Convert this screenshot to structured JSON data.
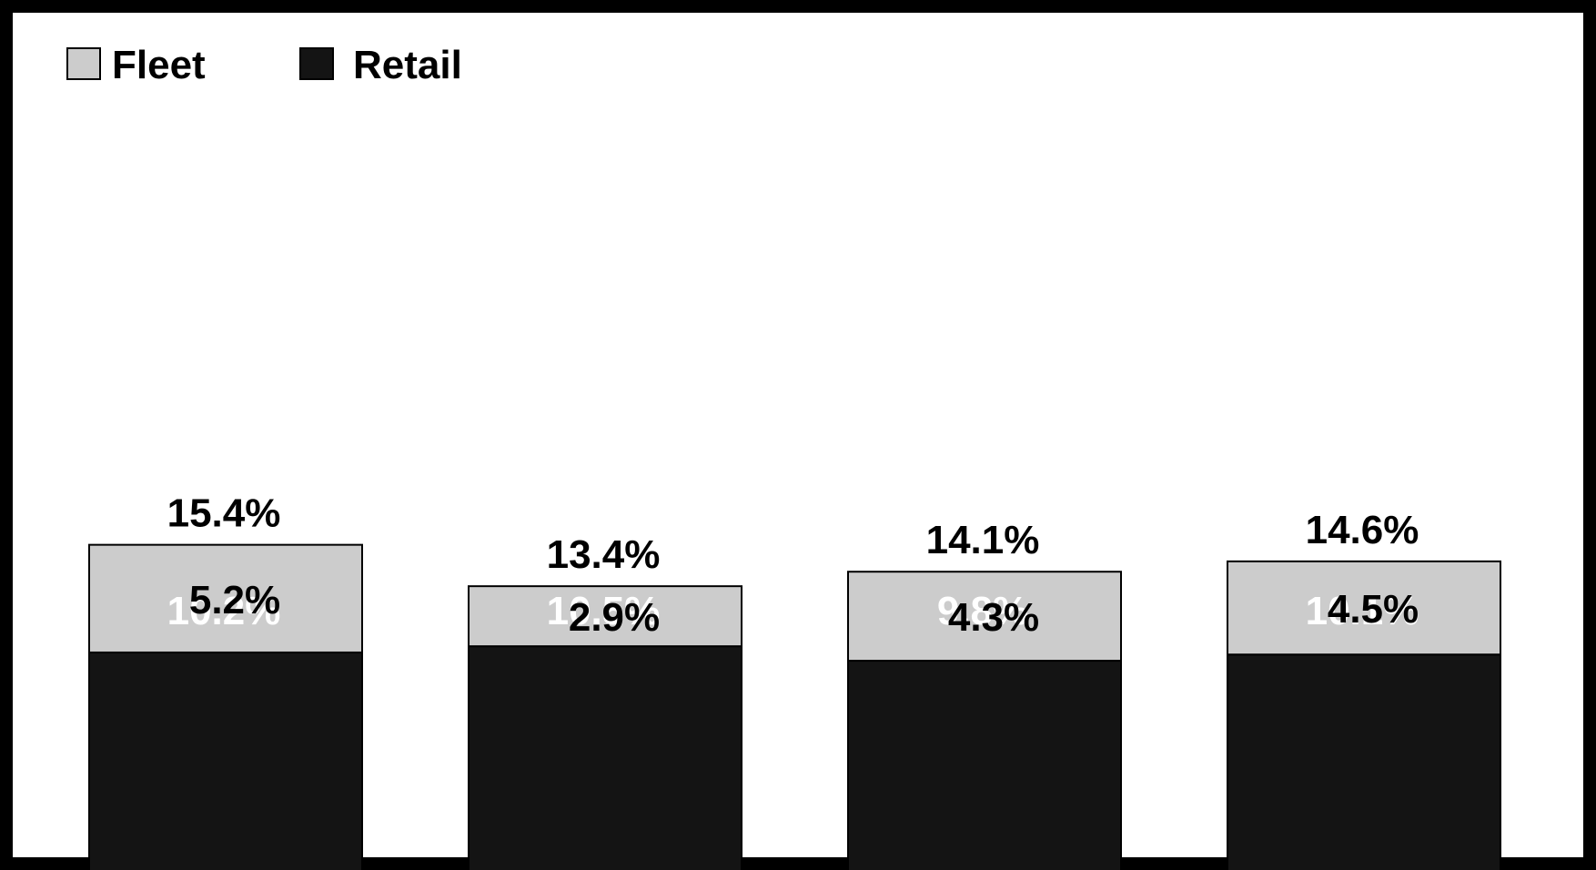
{
  "chart_data": {
    "type": "bar",
    "stacked": true,
    "categories": [
      "",
      "",
      "",
      ""
    ],
    "series": [
      {
        "name": "Retail",
        "values": [
          10.2,
          10.5,
          9.8,
          10.1
        ],
        "labels": [
          "10.2%",
          "10.5%",
          "9.8%",
          "10.1%"
        ],
        "color": "#141414"
      },
      {
        "name": "Fleet",
        "values": [
          5.2,
          2.9,
          4.3,
          4.5
        ],
        "labels": [
          "5.2%",
          "2.9%",
          "4.3%",
          "4.5%"
        ],
        "color": "#cccccc"
      }
    ],
    "totals": [
      15.4,
      13.4,
      14.1,
      14.6
    ],
    "total_labels": [
      "15.4%",
      "13.4%",
      "14.1%",
      "14.6%"
    ],
    "legend": {
      "position": "top-left",
      "items": [
        "Fleet",
        "Retail"
      ]
    },
    "grid": false,
    "axes_visible": false
  }
}
